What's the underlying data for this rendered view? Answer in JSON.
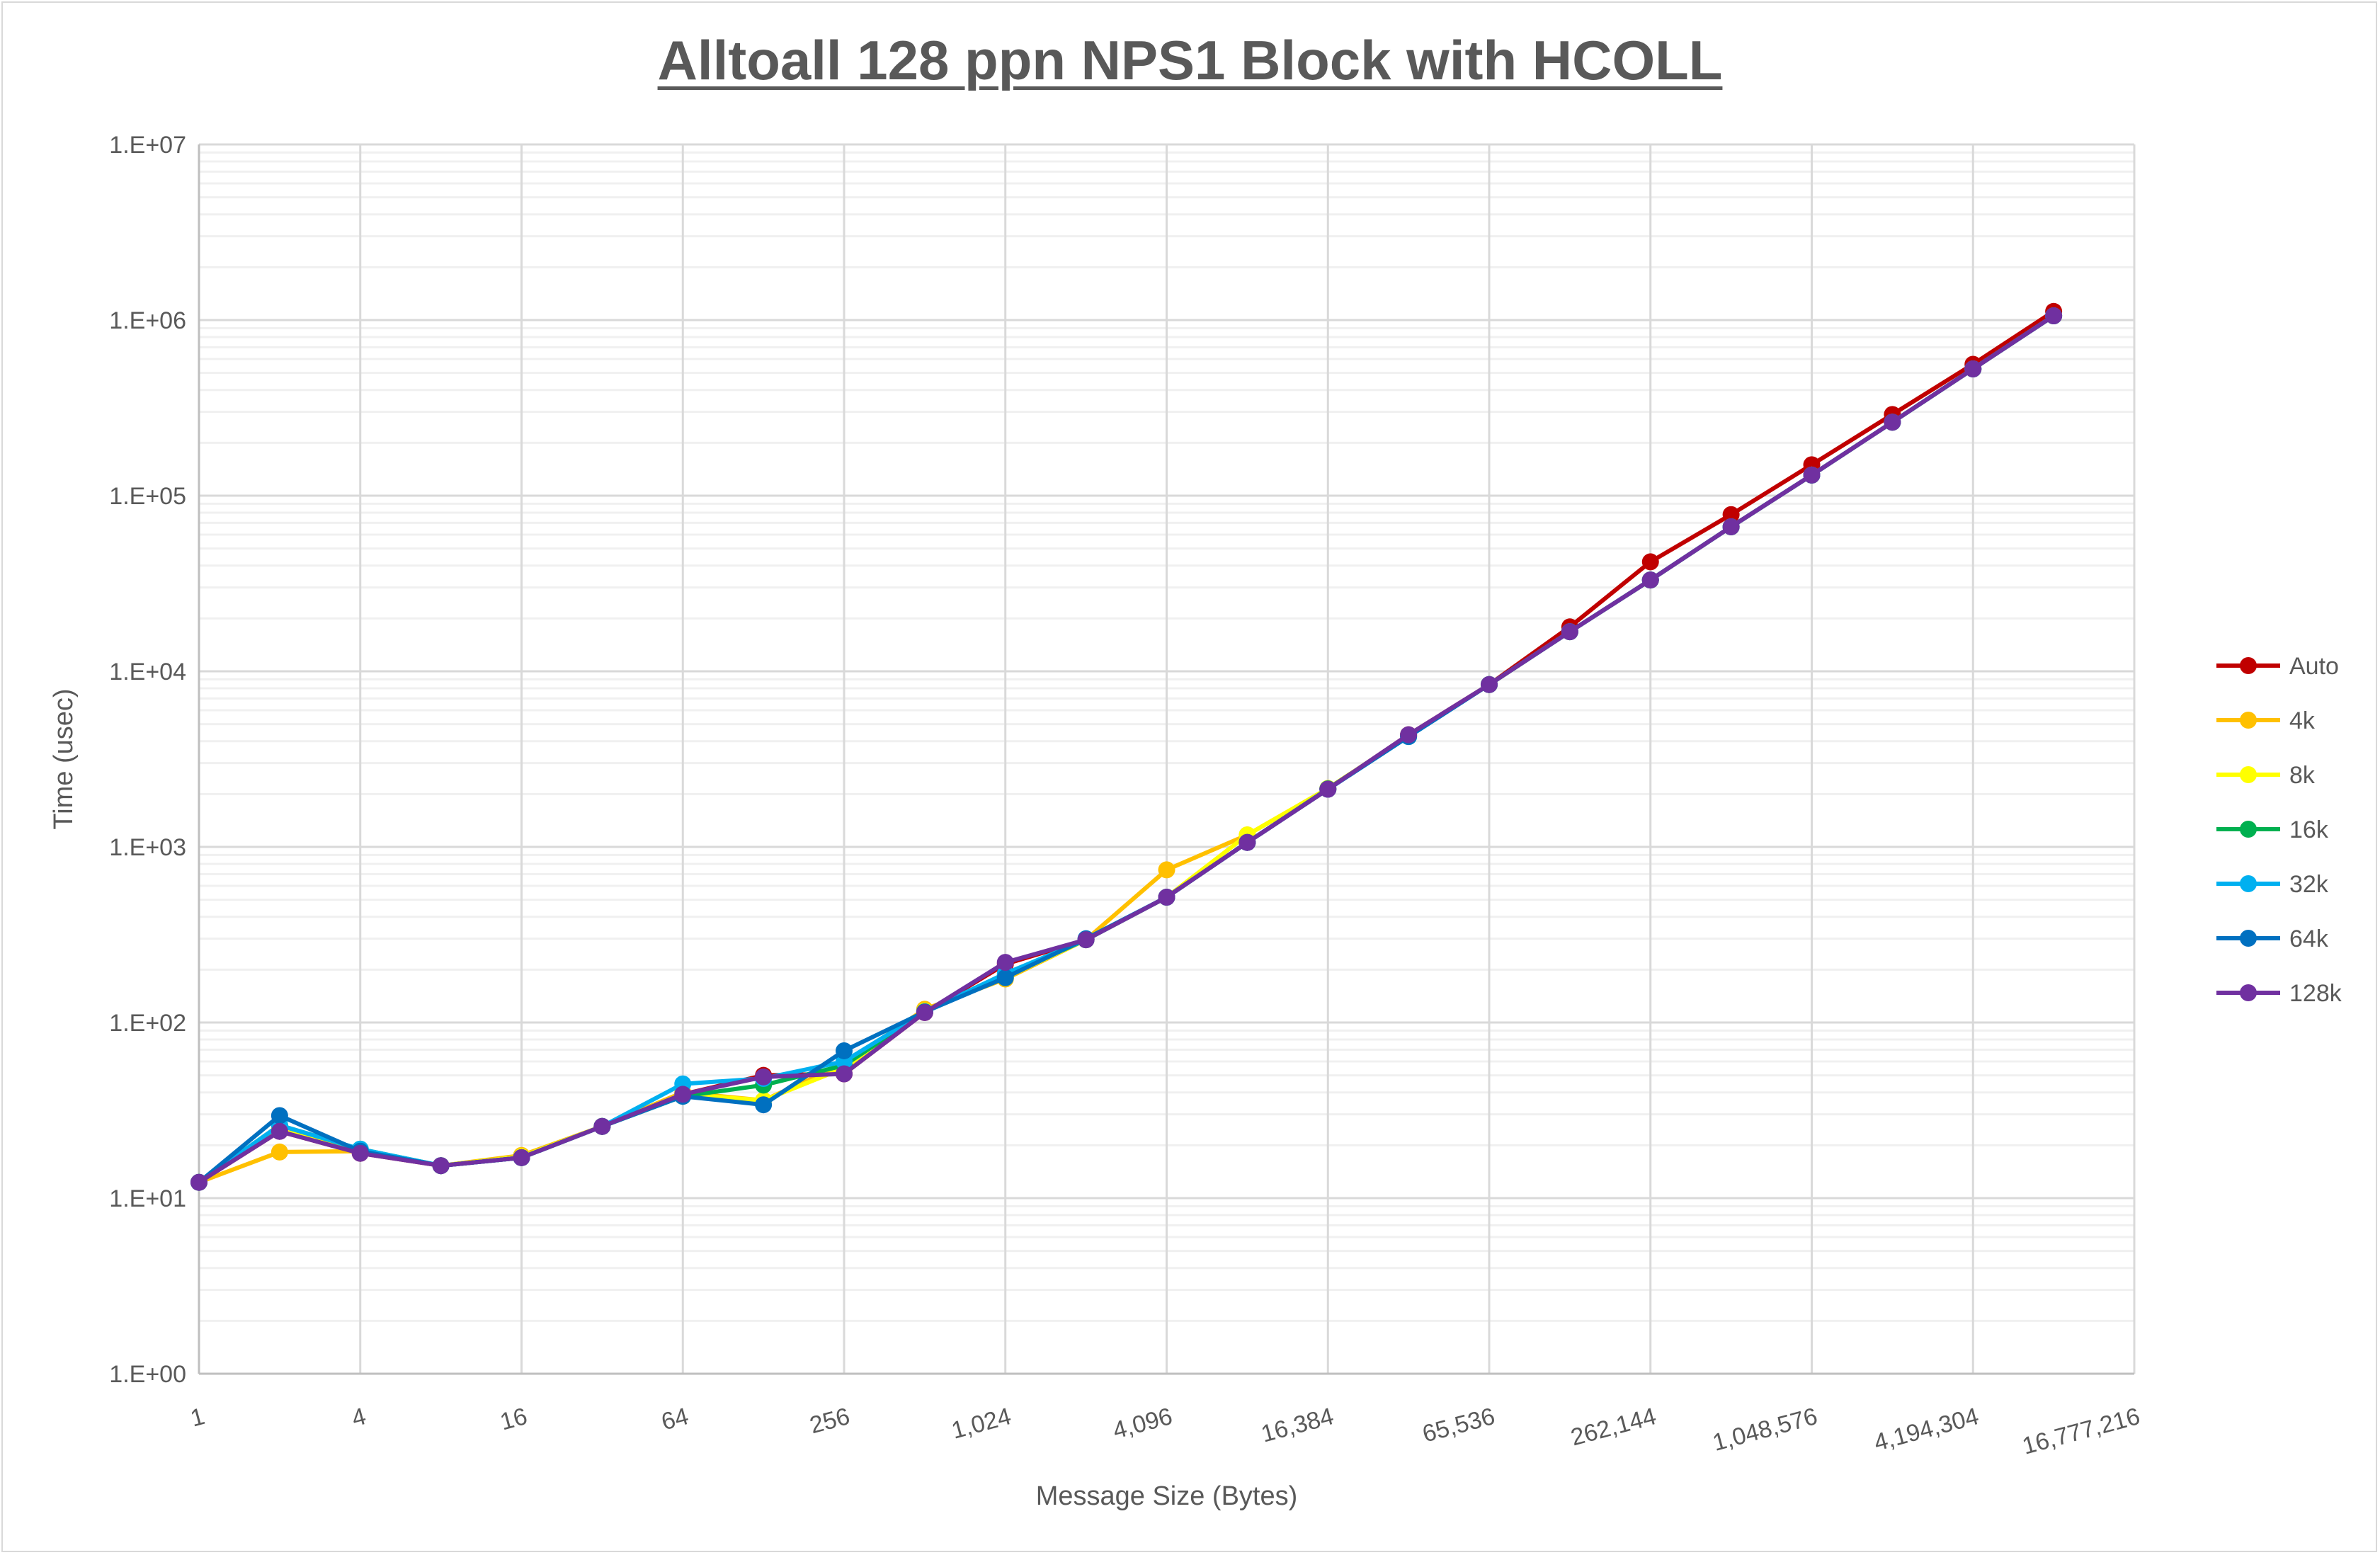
{
  "chart_data": {
    "type": "line",
    "title": "Alltoall 128 ppn NPS1 Block with HCOLL",
    "xlabel": "Message Size (Bytes)",
    "ylabel": "Time (usec)",
    "x_scale": "log2",
    "y_scale": "log10",
    "xlim": [
      1,
      16777216
    ],
    "ylim": [
      1,
      10000000
    ],
    "x_tick_labels": [
      "1",
      "4",
      "16",
      "64",
      "256",
      "1,024",
      "4,096",
      "16,384",
      "65,536",
      "262,144",
      "1,048,576",
      "4,194,304",
      "16,777,216"
    ],
    "y_tick_labels": [
      "1.E+00",
      "1.E+01",
      "1.E+02",
      "1.E+03",
      "1.E+04",
      "1.E+05",
      "1.E+06",
      "1.E+07"
    ],
    "grid": true,
    "legend_position": "right",
    "x": [
      1,
      2,
      4,
      8,
      16,
      32,
      64,
      128,
      256,
      512,
      1024,
      2048,
      4096,
      8192,
      16384,
      32768,
      65536,
      131072,
      262144,
      524288,
      1048576,
      2097152,
      4194304,
      8388608
    ],
    "series": [
      {
        "name": "Auto",
        "color": "#c00000",
        "values": [
          12.3,
          24,
          18,
          15.3,
          17,
          25.6,
          39,
          50,
          51,
          114,
          215,
          296,
          517,
          1060,
          2130,
          4350,
          8400,
          17900,
          42000,
          78000,
          150000,
          290000,
          560000,
          1120000
        ]
      },
      {
        "name": "4k",
        "color": "#ffc000",
        "values": [
          12.3,
          18.3,
          18.5,
          15.3,
          17.5,
          25.6,
          40,
          36,
          58,
          119,
          177,
          296,
          740,
          1170,
          2150,
          4300,
          8400,
          16800,
          33100,
          66500,
          131000,
          262000,
          527000,
          1057000
        ]
      },
      {
        "name": "8k",
        "color": "#ffff00",
        "values": [
          12.3,
          25,
          18.5,
          15.3,
          17.2,
          25.6,
          39,
          36,
          55,
          116,
          180,
          296,
          517,
          1170,
          2150,
          4300,
          8400,
          16800,
          33100,
          66500,
          131000,
          262000,
          527000,
          1057000
        ]
      },
      {
        "name": "16k",
        "color": "#00b050",
        "values": [
          12.3,
          26,
          19,
          15.3,
          17,
          25.6,
          38,
          44,
          57,
          115,
          185,
          296,
          517,
          1060,
          2140,
          4300,
          8400,
          16800,
          33100,
          66500,
          131000,
          262000,
          527000,
          1057000
        ]
      },
      {
        "name": "32k",
        "color": "#00b0f0",
        "values": [
          12.3,
          26,
          19,
          15.3,
          17,
          25.6,
          44.7,
          48,
          60,
          115,
          190,
          296,
          517,
          1060,
          2130,
          4250,
          8400,
          16800,
          33100,
          66500,
          131000,
          262000,
          527000,
          1057000
        ]
      },
      {
        "name": "64k",
        "color": "#0070c0",
        "values": [
          12.3,
          29.5,
          18.5,
          15.3,
          17,
          25.6,
          38,
          34,
          69,
          115,
          180,
          300,
          517,
          1060,
          2130,
          4250,
          8400,
          16800,
          33100,
          66500,
          131000,
          262000,
          527000,
          1057000
        ]
      },
      {
        "name": "128k",
        "color": "#7030a0",
        "values": [
          12.3,
          24,
          18,
          15.3,
          17,
          25.6,
          39,
          49,
          51,
          114,
          220,
          296,
          517,
          1060,
          2130,
          4350,
          8400,
          16800,
          33100,
          66500,
          131000,
          262000,
          527000,
          1057000
        ]
      }
    ]
  }
}
